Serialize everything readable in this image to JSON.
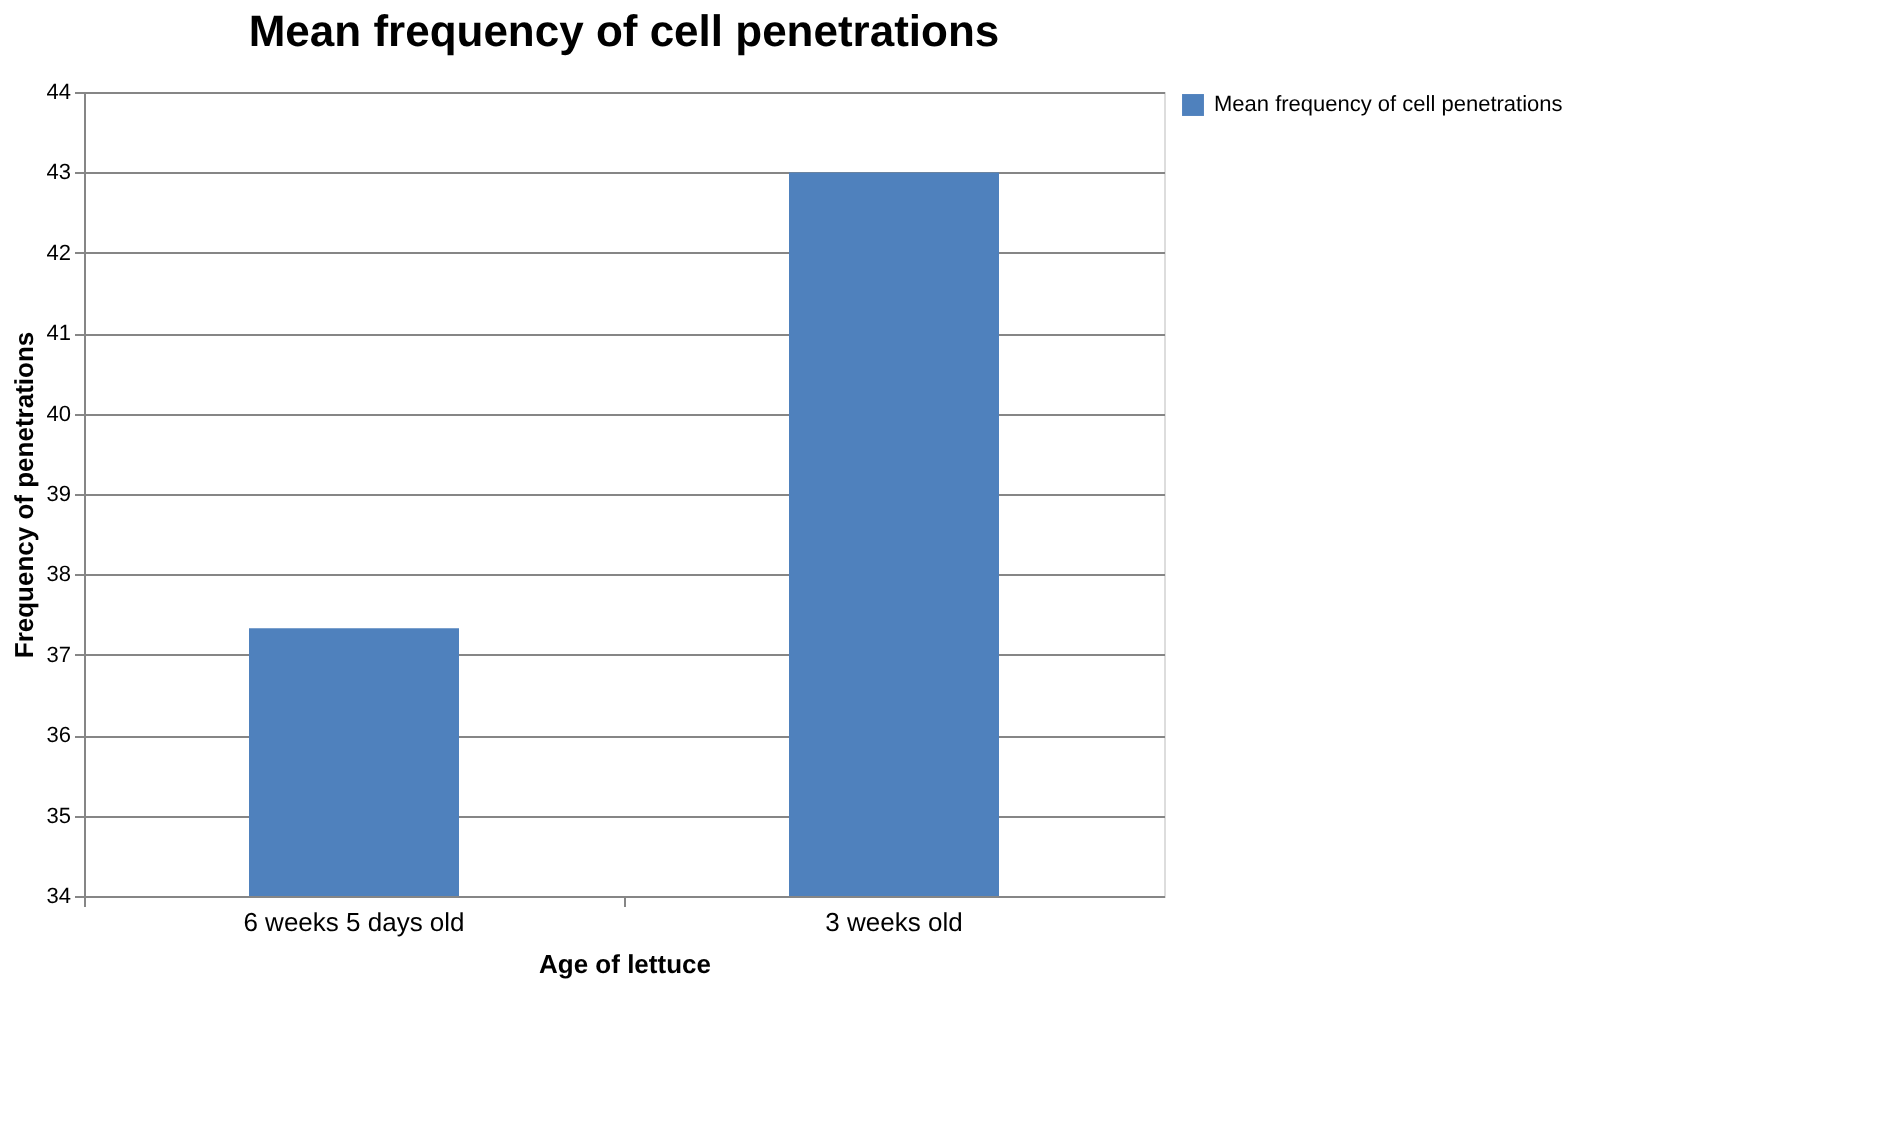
{
  "chart_data": {
    "type": "bar",
    "title": "Mean frequency of cell penetrations",
    "xlabel": "Age of lettuce",
    "ylabel": "Frequency of penetrations",
    "categories": [
      "6 weeks 5 days old",
      "3 weeks old"
    ],
    "series": [
      {
        "name": "Mean frequency of cell penetrations",
        "color": "#4f81bd",
        "values": [
          37.33,
          43
        ]
      }
    ],
    "ylim": [
      34,
      44
    ],
    "yticks": [
      34,
      35,
      36,
      37,
      38,
      39,
      40,
      41,
      42,
      43,
      44
    ],
    "grid": "y",
    "legend": "right"
  }
}
